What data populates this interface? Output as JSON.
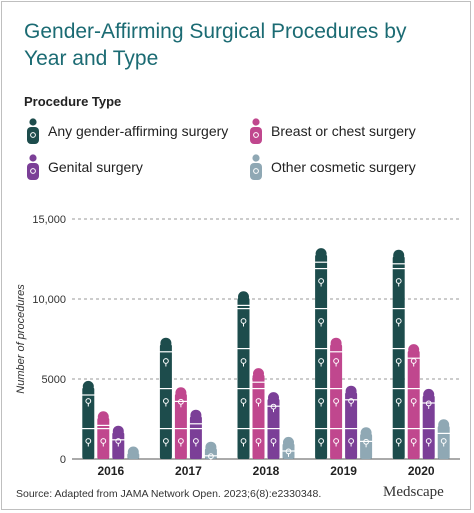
{
  "header": {
    "title": "Gender-Affirming Surgical Procedures by Year and Type"
  },
  "legend": {
    "title": "Procedure Type",
    "items": [
      {
        "label": "Any gender-affirming surgery",
        "icon": "person-gender-icon",
        "color": "#1d4c4c"
      },
      {
        "label": "Breast or chest surgery",
        "icon": "person-gender-icon",
        "color": "#c0478e"
      },
      {
        "label": "Genital surgery",
        "icon": "person-gender-icon",
        "color": "#7b3f97"
      },
      {
        "label": "Other cosmetic surgery",
        "icon": "person-gender-icon",
        "color": "#8fa8b4"
      }
    ]
  },
  "chart_data": {
    "type": "bar",
    "categories": [
      "2016",
      "2017",
      "2018",
      "2019",
      "2020"
    ],
    "series": [
      {
        "name": "Any gender-affirming surgery",
        "color": "#1d4c4c",
        "values": [
          4600,
          7300,
          10200,
          12900,
          12800
        ]
      },
      {
        "name": "Breast or chest surgery",
        "color": "#c0478e",
        "values": [
          2700,
          4200,
          5400,
          7300,
          6900
        ]
      },
      {
        "name": "Genital surgery",
        "color": "#7b3f97",
        "values": [
          1800,
          2800,
          3900,
          4300,
          4100
        ]
      },
      {
        "name": "Other cosmetic surgery",
        "color": "#8fa8b4",
        "values": [
          500,
          800,
          1100,
          1700,
          2200
        ]
      }
    ],
    "xlabel": "",
    "ylabel": "Number of procedures",
    "ylim": [
      0,
      15000
    ],
    "yticks": [
      0,
      5000,
      10000,
      15000
    ],
    "ytick_labels": [
      "0",
      "5000",
      "10,000",
      "15,000"
    ],
    "grid": true
  },
  "footer": {
    "source": "Source: Adapted from JAMA Network Open. 2023;6(8):e2330348.",
    "brand": "Medscape"
  }
}
